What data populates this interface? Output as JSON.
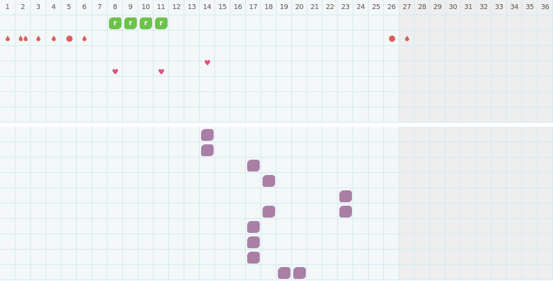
{
  "days": [
    "1",
    "2",
    "3",
    "4",
    "5",
    "6",
    "7",
    "8",
    "9",
    "10",
    "11",
    "12",
    "13",
    "14",
    "15",
    "16",
    "17",
    "18",
    "19",
    "20",
    "21",
    "22",
    "23",
    "24",
    "25",
    "26",
    "27",
    "28",
    "29",
    "30",
    "31",
    "32",
    "33",
    "34",
    "35",
    "36"
  ],
  "future_from_day": 27,
  "top_rows": 7,
  "bottom_rows": 10,
  "colors": {
    "bleeding": "#e05a5a",
    "heart": "#e0507a",
    "pill": "#6cc24a",
    "symptom": "#a97fa6",
    "future_bg": "#eeeeee",
    "grid_bg": "#f3f7f8",
    "grid_line": "#d5e9f2"
  },
  "top_markers": [
    {
      "day": 8,
      "row": 0,
      "type": "pill-icon",
      "label": "r"
    },
    {
      "day": 9,
      "row": 0,
      "type": "pill-icon",
      "label": "r"
    },
    {
      "day": 10,
      "row": 0,
      "type": "pill-icon",
      "label": "r"
    },
    {
      "day": 11,
      "row": 0,
      "type": "pill-icon",
      "label": "r"
    },
    {
      "day": 1,
      "row": 1,
      "type": "drop-icon"
    },
    {
      "day": 2,
      "row": 1,
      "type": "double-drop-icon"
    },
    {
      "day": 3,
      "row": 1,
      "type": "drop-icon"
    },
    {
      "day": 4,
      "row": 1,
      "type": "drop-icon"
    },
    {
      "day": 5,
      "row": 1,
      "type": "heavy-dot-icon"
    },
    {
      "day": 6,
      "row": 1,
      "type": "drop-icon"
    },
    {
      "day": 26,
      "row": 1,
      "type": "heavy-dot-icon"
    },
    {
      "day": 27,
      "row": 1,
      "type": "drop-icon"
    },
    {
      "day": 8,
      "row": 3,
      "type": "heart-icon"
    },
    {
      "day": 11,
      "row": 3,
      "type": "heart-icon"
    },
    {
      "day": 14,
      "row": 3,
      "type": "heart-icon"
    }
  ],
  "bottom_markers": [
    {
      "day": 14,
      "row": 0
    },
    {
      "day": 14,
      "row": 1
    },
    {
      "day": 17,
      "row": 2
    },
    {
      "day": 18,
      "row": 3
    },
    {
      "day": 23,
      "row": 4
    },
    {
      "day": 23,
      "row": 5
    },
    {
      "day": 18,
      "row": 5
    },
    {
      "day": 17,
      "row": 6
    },
    {
      "day": 17,
      "row": 7
    },
    {
      "day": 17,
      "row": 8
    },
    {
      "day": 19,
      "row": 9
    },
    {
      "day": 20,
      "row": 9
    }
  ]
}
